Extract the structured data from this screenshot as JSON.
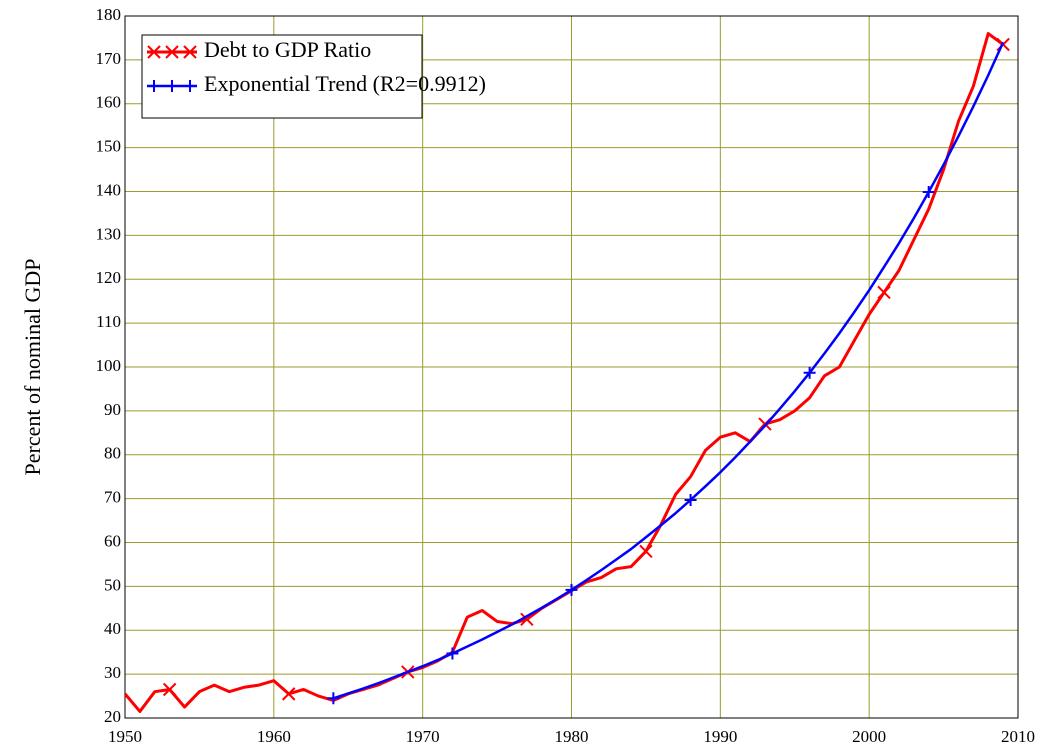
{
  "chart_data": {
    "type": "line",
    "y_label": "Percent of nominal GDP",
    "xlim": [
      1950,
      2010
    ],
    "xticks": [
      1950,
      1960,
      1970,
      1980,
      1990,
      2000,
      2010
    ],
    "ylim": [
      20,
      180
    ],
    "yticks": [
      20,
      30,
      40,
      50,
      60,
      70,
      80,
      90,
      100,
      110,
      120,
      130,
      140,
      150,
      160,
      170,
      180
    ],
    "grid": true,
    "legend": "top-left",
    "series": [
      {
        "name": "Debt to GDP Ratio",
        "color": "#ff0000",
        "marker": "x",
        "x": [
          1950,
          1951,
          1952,
          1953,
          1954,
          1955,
          1956,
          1957,
          1958,
          1959,
          1960,
          1961,
          1962,
          1963,
          1964,
          1965,
          1966,
          1967,
          1968,
          1969,
          1970,
          1971,
          1972,
          1973,
          1974,
          1975,
          1976,
          1977,
          1978,
          1979,
          1980,
          1981,
          1982,
          1983,
          1984,
          1985,
          1986,
          1987,
          1988,
          1989,
          1990,
          1991,
          1992,
          1993,
          1994,
          1995,
          1996,
          1997,
          1998,
          1999,
          2000,
          2001,
          2002,
          2003,
          2004,
          2005,
          2006,
          2007,
          2008,
          2009
        ],
        "values": [
          25.5,
          21.5,
          26,
          26.5,
          22.5,
          26,
          27.5,
          26,
          27,
          27.5,
          28.5,
          25.5,
          26.5,
          25,
          24,
          25.5,
          26.5,
          27.5,
          29,
          30.5,
          31.5,
          33,
          35,
          43,
          44.5,
          42,
          41.5,
          42.5,
          45,
          47,
          49,
          51,
          52,
          54,
          54.5,
          58,
          64,
          71,
          75,
          81,
          84,
          85,
          83,
          87,
          88,
          90,
          93,
          98,
          100,
          106,
          112,
          117,
          122,
          129,
          136,
          145,
          156,
          164,
          176,
          173.5
        ]
      },
      {
        "name": "Exponential Trend (R2=0.9912)",
        "color": "#0000ff",
        "marker": "+",
        "x": [
          1964,
          1965,
          1966,
          1967,
          1968,
          1969,
          1970,
          1971,
          1972,
          1973,
          1974,
          1975,
          1976,
          1977,
          1978,
          1979,
          1980,
          1981,
          1982,
          1983,
          1984,
          1985,
          1986,
          1987,
          1988,
          1989,
          1990,
          1991,
          1992,
          1993,
          1994,
          1995,
          1996,
          1997,
          1998,
          1999,
          2000,
          2001,
          2002,
          2003,
          2004,
          2005,
          2006,
          2007,
          2008,
          2009
        ],
        "values": [
          24.5,
          25.6,
          26.7,
          27.9,
          29.2,
          30.5,
          31.8,
          33.2,
          34.7,
          36.3,
          37.9,
          39.6,
          41.3,
          43.2,
          45.1,
          47.1,
          49.2,
          51.4,
          53.7,
          56.1,
          58.5,
          61.2,
          63.9,
          66.7,
          69.7,
          72.8,
          76.0,
          79.4,
          83.0,
          86.6,
          90.5,
          94.5,
          98.7,
          103.1,
          107.7,
          112.5,
          117.5,
          122.8,
          128.2,
          133.9,
          139.9,
          146.1,
          152.6,
          159.4,
          166.5,
          174.0
        ]
      }
    ]
  }
}
